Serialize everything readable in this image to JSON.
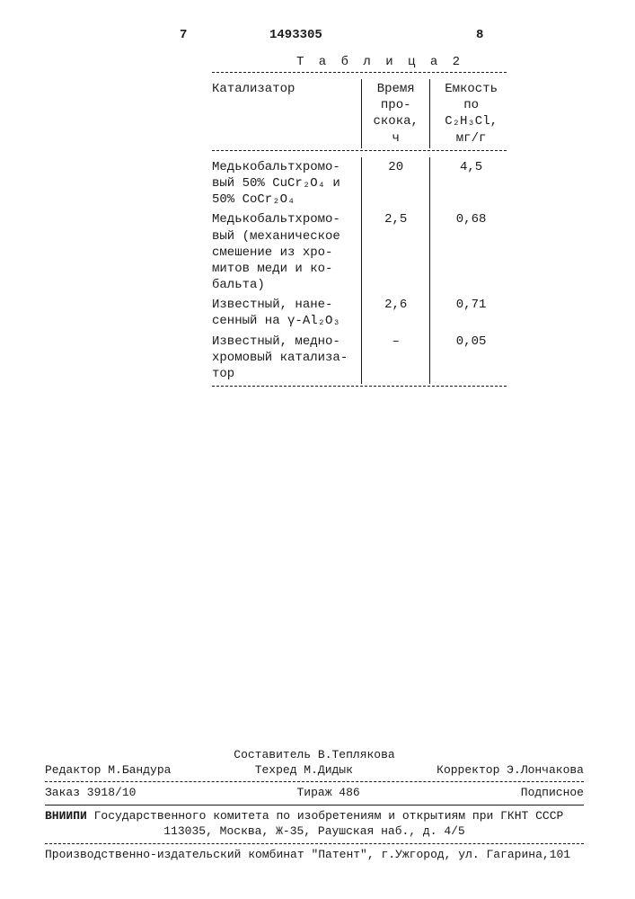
{
  "header": {
    "page_left": "7",
    "patent_number": "1493305",
    "page_right": "8"
  },
  "table": {
    "caption": "Т а б л и ц а  2",
    "columns": {
      "c1": "Катализатор",
      "c2": "Время про-скока, ч",
      "c3": "Емкость по C₂H₃Cl, мг/г"
    },
    "rows": [
      {
        "cat": "Медькобальтхромо-вый 50% CuCr₂O₄ и 50% CoCr₂O₄",
        "time": "20",
        "cap": "4,5"
      },
      {
        "cat": "Медькобальтхромо-вый (механическое смешение из хро-митов меди и ко-бальта)",
        "time": "2,5",
        "cap": "0,68"
      },
      {
        "cat": "Известный, нане-сенный на γ-Al₂O₃",
        "time": "2,6",
        "cap": "0,71"
      },
      {
        "cat": "Известный, медно-хромовый катализа-тор",
        "time": "–",
        "cap": "0,05"
      }
    ]
  },
  "footer": {
    "compiler": "Составитель В.Теплякова",
    "editor": "Редактор М.Бандура",
    "techred": "Техред М.Дидык",
    "corrector": "Корректор Э.Лончакова",
    "order": "Заказ 3918/10",
    "tirazh": "Тираж 486",
    "podpisnoe": "Подписное",
    "org_label": "ВНИИПИ",
    "org_text": "Государственного комитета по изобретениям и открытиям при ГКНТ СССР",
    "org_addr": "113035, Москва, Ж-35, Раушская наб., д. 4/5",
    "printer": "Производственно-издательский комбинат \"Патент\", г.Ужгород, ул. Гагарина,101"
  }
}
